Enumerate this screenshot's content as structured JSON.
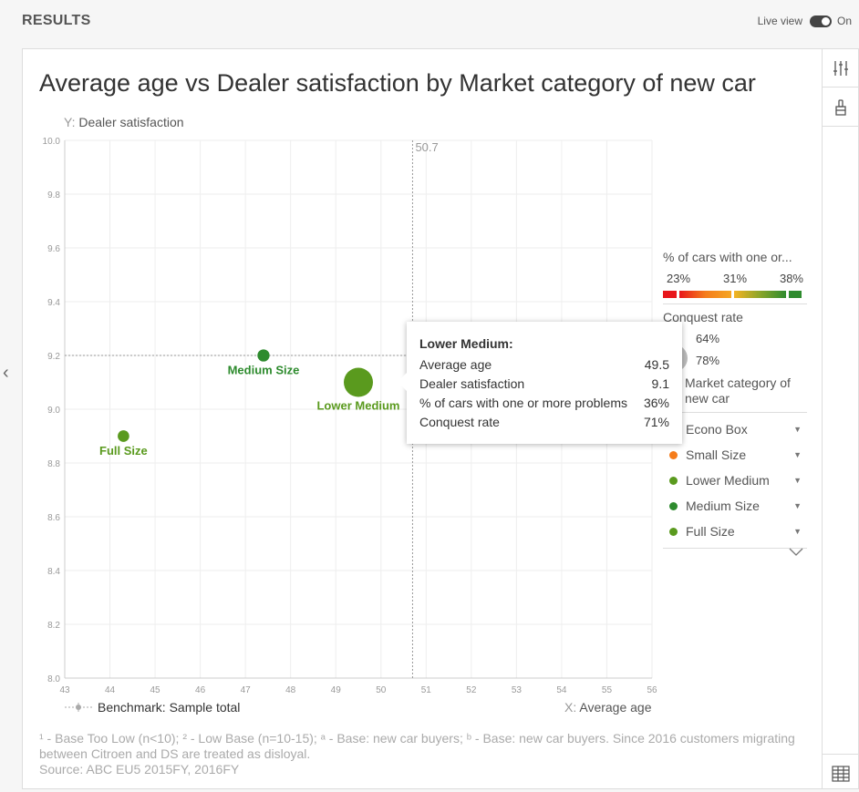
{
  "header": {
    "title": "RESULTS",
    "live_view_label": "Live view",
    "live_view_state": "On"
  },
  "chart_title": "Average age vs Dealer satisfaction by Market category of new car",
  "chart_data": {
    "type": "scatter",
    "title": "Average age vs Dealer satisfaction by Market category of new car",
    "ylabel_prefix": "Y:",
    "ylabel": "Dealer satisfaction",
    "xlabel_prefix": "X:",
    "xlabel": "Average age",
    "xlim": [
      43,
      56
    ],
    "ylim": [
      8.0,
      10.0
    ],
    "x_ticks": [
      "43",
      "44",
      "45",
      "46",
      "47",
      "48",
      "49",
      "50",
      "51",
      "52",
      "53",
      "54",
      "55",
      "56"
    ],
    "y_ticks": [
      "10.0",
      "9.8",
      "9.6",
      "9.4",
      "9.2",
      "9.0",
      "8.8",
      "8.6",
      "8.4",
      "8.2",
      "8.0"
    ],
    "benchmark_x": 50.7,
    "benchmark_x_label": "50.7",
    "benchmark_y": 9.2,
    "grid": true,
    "legend_position": "right",
    "points": [
      {
        "name": "Medium Size",
        "x": 47.4,
        "y": 9.2,
        "size_rel": 0.15,
        "color": "#2e8b2e"
      },
      {
        "name": "Lower Medium",
        "x": 49.5,
        "y": 9.1,
        "size_rel": 1.0,
        "color": "#5a9a1e"
      },
      {
        "name": "Full Size",
        "x": 44.3,
        "y": 8.9,
        "size_rel": 0.12,
        "color": "#5a9a1e"
      }
    ]
  },
  "legend": {
    "color_title": "% of cars with one or...",
    "color_labels": [
      "23%",
      "31%",
      "38%"
    ],
    "gradient_colors": [
      "#e8161b",
      "#e8421b",
      "#f5a623",
      "#6a9a2a",
      "#2e8b2e"
    ],
    "size_title": "Conquest rate",
    "size_labels": [
      "64%",
      "78%"
    ],
    "category_title": "Market category of new car",
    "categories": [
      {
        "label": "Econo Box",
        "color": "#e8161b"
      },
      {
        "label": "Small Size",
        "color": "#f57c1b"
      },
      {
        "label": "Lower Medium",
        "color": "#5a9a1e"
      },
      {
        "label": "Medium Size",
        "color": "#2e8b2e"
      },
      {
        "label": "Full Size",
        "color": "#5a9a1e"
      }
    ]
  },
  "benchmark_label": "Benchmark: Sample total",
  "tooltip": {
    "title": "Lower Medium:",
    "rows": [
      {
        "label": "Average age",
        "value": "49.5"
      },
      {
        "label": "Dealer satisfaction",
        "value": "9.1"
      },
      {
        "label": "% of cars with one or more problems",
        "value": "36%"
      },
      {
        "label": "Conquest rate",
        "value": "71%"
      }
    ]
  },
  "footnotes": {
    "line1": "¹ - Base Too Low (n<10);   ² - Low Base (n=10-15);   ᵃ - Base: new car buyers;   ᵇ - Base: new car buyers. Since 2016 customers migrating between Citroen and DS are treated as disloyal.",
    "line2": "Source: ABC EU5 2015FY, 2016FY"
  },
  "icons": {
    "settings": "sliders-icon",
    "brush": "brush-icon",
    "table": "table-icon",
    "collapse": "chevron-left-icon"
  }
}
